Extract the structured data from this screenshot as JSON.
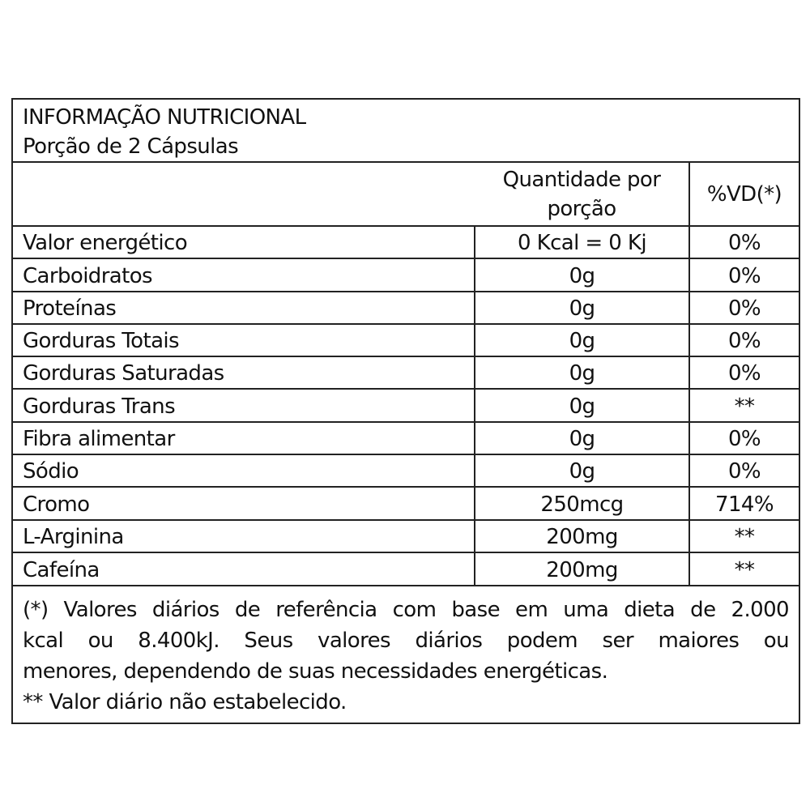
{
  "title": "INFORMAÇÃO NUTRICIONAL",
  "serving": "Porção de 2 Cápsulas",
  "headers": {
    "quantity": "Quantidade por porção",
    "dv": "%VD(*)"
  },
  "rows": [
    {
      "name": "Valor energético",
      "amount": "0 Kcal = 0 Kj",
      "dv": "0%"
    },
    {
      "name": "Carboidratos",
      "amount": "0g",
      "dv": "0%"
    },
    {
      "name": "Proteínas",
      "amount": "0g",
      "dv": "0%"
    },
    {
      "name": "Gorduras Totais",
      "amount": "0g",
      "dv": "0%"
    },
    {
      "name": "Gorduras Saturadas",
      "amount": "0g",
      "dv": "0%"
    },
    {
      "name": "Gorduras Trans",
      "amount": "0g",
      "dv": "**"
    },
    {
      "name": "Fibra alimentar",
      "amount": "0g",
      "dv": "0%"
    },
    {
      "name": "Sódio",
      "amount": "0g",
      "dv": "0%"
    },
    {
      "name": "Cromo",
      "amount": "250mcg",
      "dv": "714%"
    },
    {
      "name": "L-Arginina",
      "amount": "200mg",
      "dv": "**"
    },
    {
      "name": "Cafeína",
      "amount": "200mg",
      "dv": "**"
    }
  ],
  "footnotes": {
    "line1": "(*) Valores diários de referência com base em uma dieta de 2.000",
    "line2": "kcal ou 8.400kJ. Seus valores diários podem ser maiores ou",
    "line3": "menores, dependendo de suas necessidades energéticas.",
    "line4": "** Valor diário não estabelecido."
  }
}
